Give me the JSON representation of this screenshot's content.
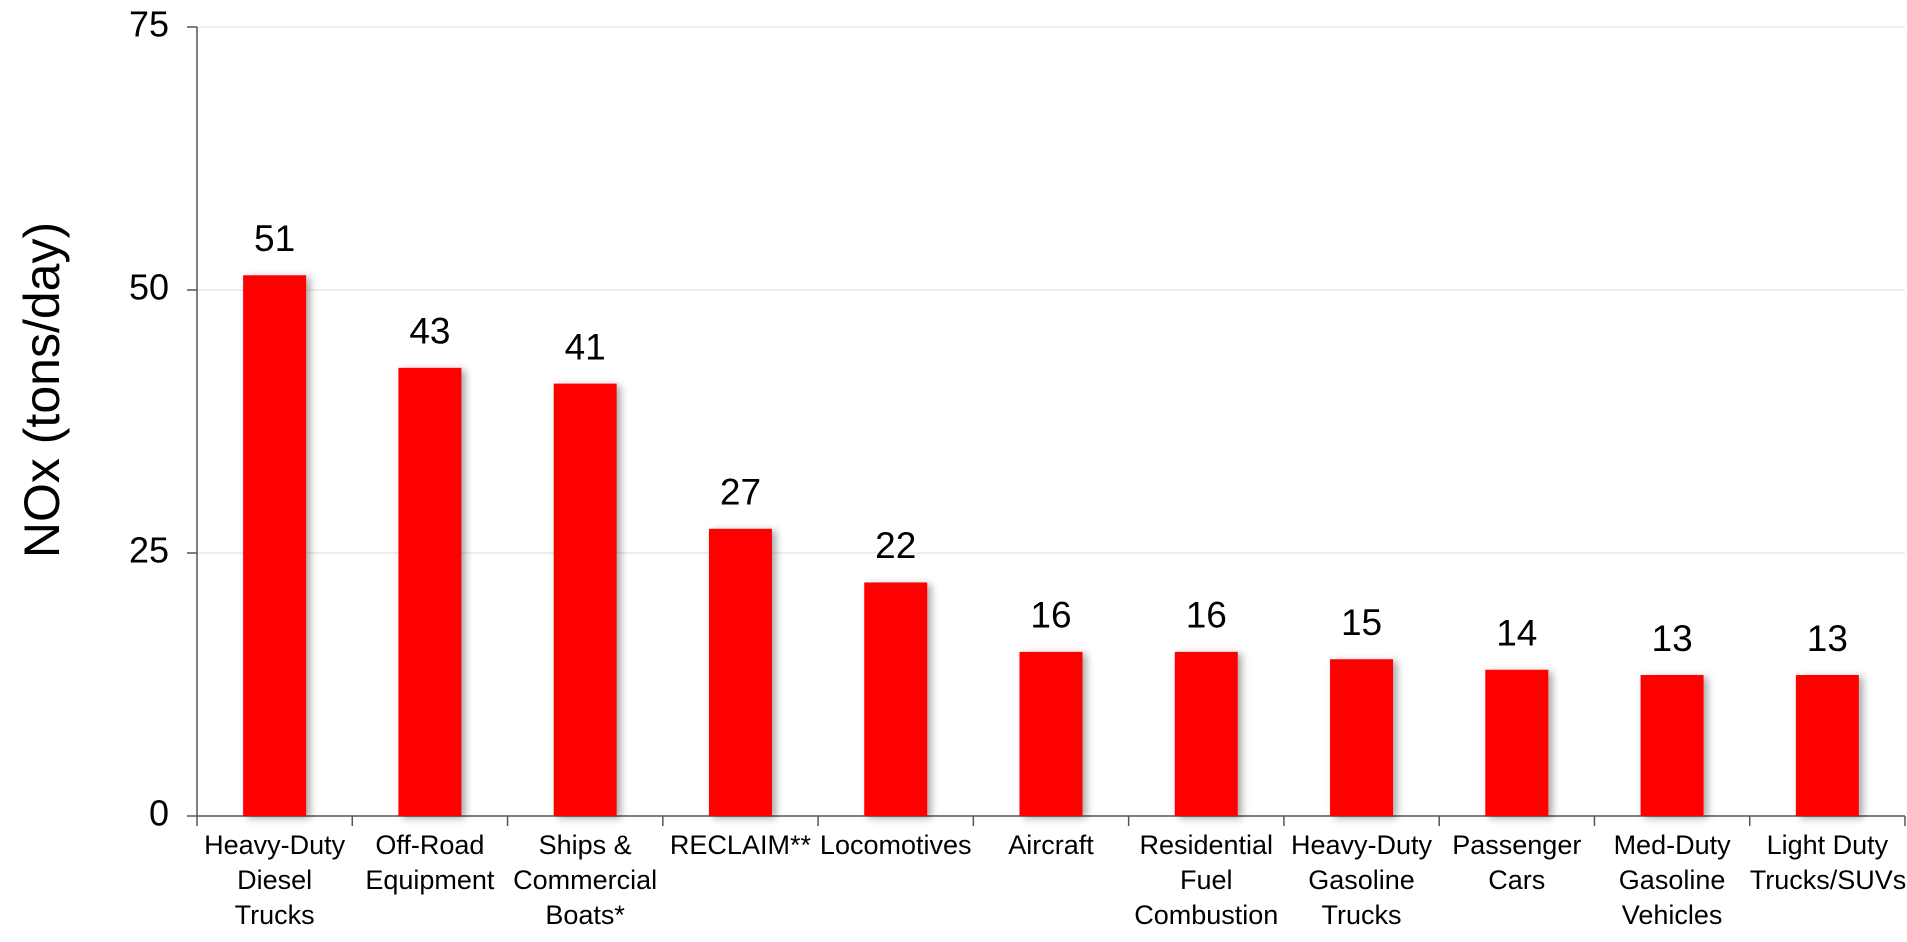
{
  "chart_data": {
    "type": "bar",
    "y_axis_label": "NOx (tons/day)",
    "categories": [
      "Heavy-Duty\nDiesel\nTrucks",
      "Off-Road\nEquipment",
      "Ships &\nCommercial\nBoats*",
      "RECLAIM**",
      "Locomotives",
      "Aircraft",
      "Residential\nFuel\nCombustion",
      "Heavy-Duty\nGasoline\nTrucks",
      "Passenger\nCars",
      "Med-Duty\nGasoline\nVehicles",
      "Light Duty\nTrucks/SUVs"
    ],
    "values": [
      51.4,
      42.6,
      41.1,
      27.3,
      22.2,
      15.6,
      15.6,
      14.9,
      13.9,
      13.4,
      13.4
    ],
    "value_labels": [
      "51",
      "43",
      "41",
      "27",
      "22",
      "16",
      "16",
      "15",
      "14",
      "13",
      "13"
    ],
    "color": "#ff0000",
    "ylim": [
      0,
      75
    ],
    "yticks": [
      0,
      25,
      50,
      75
    ],
    "grid": true
  }
}
